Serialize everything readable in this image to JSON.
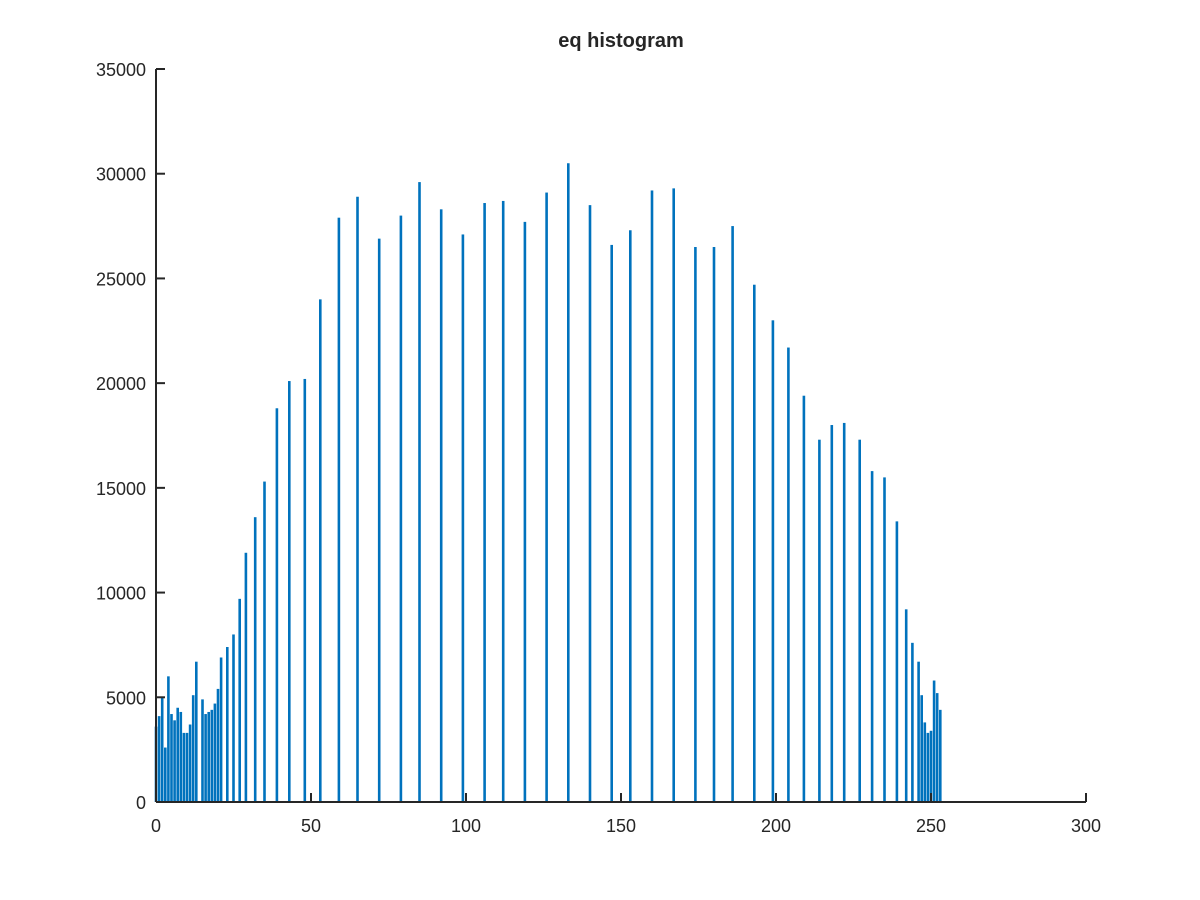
{
  "chart_data": {
    "type": "bar",
    "title": "eq histogram",
    "xlabel": "",
    "ylabel": "",
    "xlim": [
      0,
      300
    ],
    "ylim": [
      0,
      35000
    ],
    "xticks": [
      0,
      50,
      100,
      150,
      200,
      250,
      300
    ],
    "yticks": [
      0,
      5000,
      10000,
      15000,
      20000,
      25000,
      30000,
      35000
    ],
    "grid": false,
    "bar_color": "#0072bd",
    "x": [
      0,
      1,
      2,
      3,
      4,
      5,
      6,
      7,
      8,
      9,
      10,
      11,
      12,
      13,
      15,
      16,
      17,
      18,
      19,
      20,
      21,
      23,
      25,
      27,
      29,
      32,
      35,
      39,
      43,
      48,
      53,
      59,
      65,
      72,
      79,
      85,
      92,
      99,
      106,
      112,
      119,
      126,
      133,
      140,
      147,
      153,
      160,
      167,
      174,
      180,
      186,
      193,
      199,
      204,
      209,
      214,
      218,
      222,
      227,
      231,
      235,
      239,
      242,
      244,
      246,
      247,
      248,
      249,
      250,
      251,
      252,
      253,
      254
    ],
    "values": [
      3600,
      4100,
      5000,
      2600,
      6000,
      4200,
      3900,
      4500,
      4300,
      3300,
      3300,
      3700,
      5100,
      6700,
      4900,
      4200,
      4300,
      4400,
      4700,
      5400,
      6900,
      7400,
      8000,
      9700,
      11900,
      13600,
      15300,
      18800,
      20100,
      20200,
      24000,
      27900,
      28900,
      26900,
      28000,
      29600,
      28300,
      27100,
      28600,
      28700,
      27700,
      29100,
      30500,
      28500,
      26600,
      27300,
      29200,
      29300,
      26500,
      26500,
      27500,
      24700,
      23000,
      21700,
      19400,
      17300,
      18000,
      18100,
      17300,
      15800,
      15500,
      13400,
      9200,
      7600,
      6700,
      5100,
      3800,
      3300,
      3400,
      5800,
      5200,
      4400,
      0
    ]
  }
}
